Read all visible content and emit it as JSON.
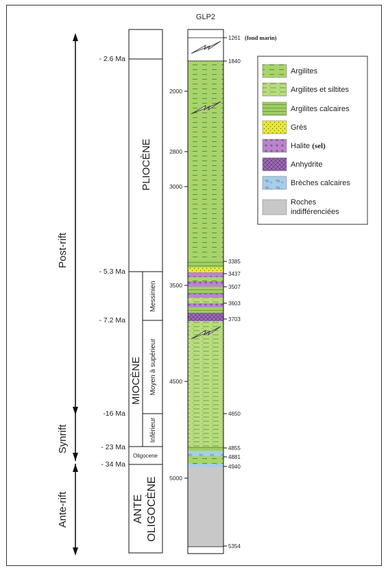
{
  "well_name": "GLP2",
  "colors": {
    "argilites": "#a7d46a",
    "argilites_siltites": "#b9dd7f",
    "argilites_calcaires": "#9fce62",
    "gres": "#e9ea3b",
    "halite": "#b987c9",
    "anhydrite": "#9b6cb3",
    "breches": "#a7cde8",
    "roches_indif": "#c8c8c8"
  },
  "phases": [
    {
      "label": "Post-rift"
    },
    {
      "label": "Synrift"
    },
    {
      "label": "Ante-rift"
    }
  ],
  "ages": [
    "- 2.6 Ma",
    "- 5.3 Ma",
    "- 7.2 Ma",
    "-16 Ma",
    "- 23 Ma",
    "- 34 Ma"
  ],
  "epochs": {
    "pliocene": "PLIOCÈNE",
    "miocene": "MIOCÈNE",
    "messinien": "Messinien",
    "moyen_sup": "Moyen à supérieur",
    "inferieur": "Inférieur",
    "oligocene": "Oligocene",
    "ante_1": "ANTE",
    "ante_2": "OLIGOCÈNE"
  },
  "left_depths": [
    "2000",
    "2800",
    "3000",
    "3500",
    "4500",
    "5000"
  ],
  "right_depths": [
    "1840",
    "3385",
    "3437",
    "3507",
    "3603",
    "3703",
    "4650",
    "4855",
    "4881",
    "4940",
    "5354"
  ],
  "top_depth": {
    "value": "1261",
    "note": "(fond marin)"
  },
  "legend": [
    {
      "label": "Argilites",
      "color": "argilites",
      "pattern": "dash"
    },
    {
      "label": "Argilites et siltites",
      "color": "argilites_siltites",
      "pattern": "dash2"
    },
    {
      "label": "Argilites calcaires",
      "color": "argilites_calcaires",
      "pattern": "lines"
    },
    {
      "label": "Grès",
      "color": "gres",
      "pattern": "dots"
    },
    {
      "label": "Halite ",
      "label_extra": "(sel)",
      "color": "halite",
      "pattern": "cross"
    },
    {
      "label": "Anhydrite",
      "color": "anhydrite",
      "pattern": "xhatch"
    },
    {
      "label": "Brèches calcaires",
      "color": "breches",
      "pattern": "blob"
    },
    {
      "label": "Roches",
      "label_line2": "indifférenciées",
      "color": "roches_indif",
      "pattern": "none"
    }
  ]
}
